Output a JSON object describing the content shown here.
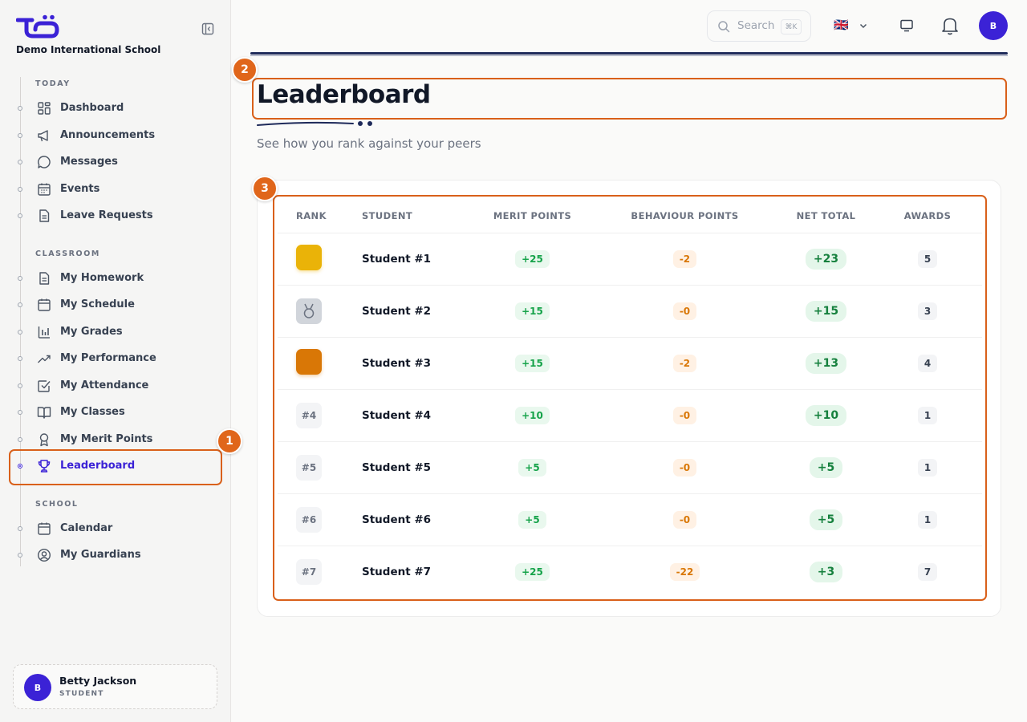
{
  "school": {
    "name": "Demo International School"
  },
  "sidebar": {
    "sections": {
      "today": "TODAY",
      "classroom": "CLASSROOM",
      "school": "SCHOOL"
    },
    "items": {
      "dashboard": "Dashboard",
      "announcements": "Announcements",
      "messages": "Messages",
      "events": "Events",
      "leave_requests": "Leave Requests",
      "my_homework": "My Homework",
      "my_schedule": "My Schedule",
      "my_grades": "My Grades",
      "my_performance": "My Performance",
      "my_attendance": "My Attendance",
      "my_classes": "My Classes",
      "my_merit_points": "My Merit Points",
      "leaderboard": "Leaderboard",
      "calendar": "Calendar",
      "my_guardians": "My Guardians"
    },
    "active": "leaderboard"
  },
  "user": {
    "initial": "B",
    "name": "Betty Jackson",
    "role": "STUDENT"
  },
  "header": {
    "search_label": "Search",
    "search_shortcut": "⌘K",
    "language_flag": "🇬🇧",
    "avatar_initial": "B"
  },
  "annotations": {
    "one": "1",
    "two": "2",
    "three": "3"
  },
  "page": {
    "title": "Leaderboard",
    "subtitle": "See how you rank against your peers"
  },
  "table": {
    "columns": {
      "rank": "RANK",
      "student": "STUDENT",
      "merit": "MERIT POINTS",
      "behaviour": "BEHAVIOUR POINTS",
      "net": "NET TOTAL",
      "awards": "AWARDS"
    },
    "rows": [
      {
        "rank": "",
        "rank_style": "gold",
        "student": "Student #1",
        "merit": "+25",
        "behaviour": "-2",
        "net": "+23",
        "awards": "5"
      },
      {
        "rank": "",
        "rank_style": "silver",
        "student": "Student #2",
        "merit": "+15",
        "behaviour": "-0",
        "net": "+15",
        "awards": "3"
      },
      {
        "rank": "",
        "rank_style": "bronze",
        "student": "Student #3",
        "merit": "+15",
        "behaviour": "-2",
        "net": "+13",
        "awards": "4"
      },
      {
        "rank": "#4",
        "rank_style": "plain",
        "student": "Student #4",
        "merit": "+10",
        "behaviour": "-0",
        "net": "+10",
        "awards": "1"
      },
      {
        "rank": "#5",
        "rank_style": "plain",
        "student": "Student #5",
        "merit": "+5",
        "behaviour": "-0",
        "net": "+5",
        "awards": "1"
      },
      {
        "rank": "#6",
        "rank_style": "plain",
        "student": "Student #6",
        "merit": "+5",
        "behaviour": "-0",
        "net": "+5",
        "awards": "1"
      },
      {
        "rank": "#7",
        "rank_style": "plain",
        "student": "Student #7",
        "merit": "+25",
        "behaviour": "-22",
        "net": "+3",
        "awards": "7"
      }
    ]
  },
  "colors": {
    "accent": "#3b22d6",
    "annotation": "#e0661b",
    "gold": "#eab308",
    "silver": "#d1d5db",
    "bronze": "#d97706"
  }
}
